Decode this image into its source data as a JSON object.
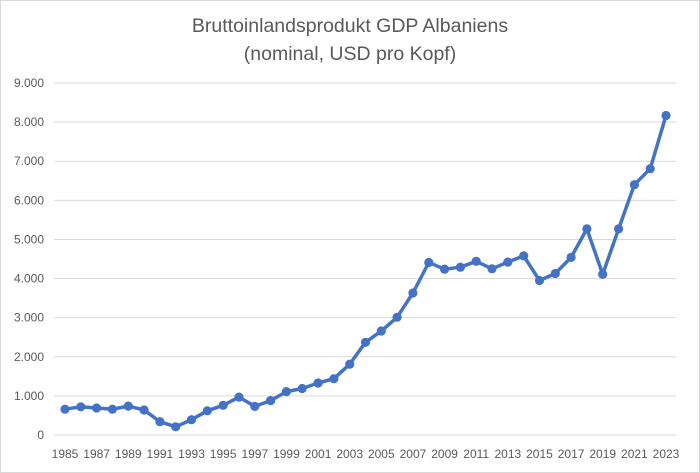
{
  "chart_data": {
    "type": "line",
    "title": "Bruttoinlandsprodukt GDP Albaniens",
    "subtitle": "(nominal, USD pro Kopf)",
    "xlabel": "",
    "ylabel": "",
    "ylim": [
      0,
      9000
    ],
    "yticks": [
      "0",
      "1.000",
      "2.000",
      "3.000",
      "4.000",
      "5.000",
      "6.000",
      "7.000",
      "8.000",
      "9.000"
    ],
    "xtick_labels": [
      "1985",
      "1987",
      "1989",
      "1991",
      "1993",
      "1995",
      "1997",
      "1999",
      "2001",
      "2003",
      "2005",
      "2007",
      "2009",
      "2011",
      "2013",
      "2015",
      "2017",
      "2019",
      "2021",
      "2023"
    ],
    "grid": true,
    "legend": "none",
    "color": "#4472C4",
    "x": [
      1985,
      1986,
      1987,
      1988,
      1989,
      1990,
      1991,
      1992,
      1993,
      1994,
      1995,
      1996,
      1997,
      1998,
      1999,
      2000,
      2001,
      2002,
      2003,
      2004,
      2005,
      2006,
      2007,
      2008,
      2009,
      2010,
      2011,
      2012,
      2013,
      2014,
      2015,
      2016,
      2017,
      2018,
      2019,
      2020,
      2021,
      2022,
      2023
    ],
    "values": [
      660,
      720,
      690,
      660,
      740,
      640,
      340,
      210,
      390,
      620,
      760,
      970,
      730,
      880,
      1110,
      1190,
      1330,
      1440,
      1810,
      2370,
      2660,
      3010,
      3630,
      4410,
      4240,
      4290,
      4440,
      4250,
      4420,
      4580,
      3950,
      4130,
      4540,
      5270,
      4110,
      5270,
      6400,
      6810,
      8170
    ]
  }
}
